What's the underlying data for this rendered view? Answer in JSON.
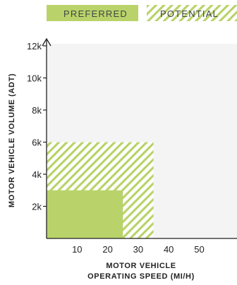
{
  "chart_data": {
    "type": "area",
    "xlabel": [
      "MOTOR VEHICLE",
      "OPERATING SPEED (MI/H)"
    ],
    "ylabel": "MOTOR VEHICLE VOLUME (ADT)",
    "xlim": [
      0,
      60
    ],
    "ylim": [
      0,
      12000
    ],
    "x_ticks": [
      10,
      20,
      30,
      40,
      50
    ],
    "x_tick_labels": [
      "10",
      "20",
      "30",
      "40",
      "50"
    ],
    "y_ticks": [
      2000,
      4000,
      6000,
      8000,
      10000,
      12000
    ],
    "y_tick_labels": [
      "2k",
      "4k",
      "6k",
      "8k",
      "10k",
      "12k"
    ],
    "grid": false,
    "legend_position": "top",
    "series": [
      {
        "name": "PREFERRED",
        "x_range": [
          0,
          25
        ],
        "y_range": [
          0,
          3000
        ],
        "fill": "solid",
        "color": "#b9d36a"
      },
      {
        "name": "POTENTIAL",
        "x_range": [
          0,
          35
        ],
        "y_range": [
          0,
          6000
        ],
        "fill": "hatched",
        "color": "#b9d36a"
      }
    ]
  },
  "colors": {
    "plot_background": "#f4f4f4",
    "accent": "#b9d36a",
    "axis": "#222222"
  }
}
